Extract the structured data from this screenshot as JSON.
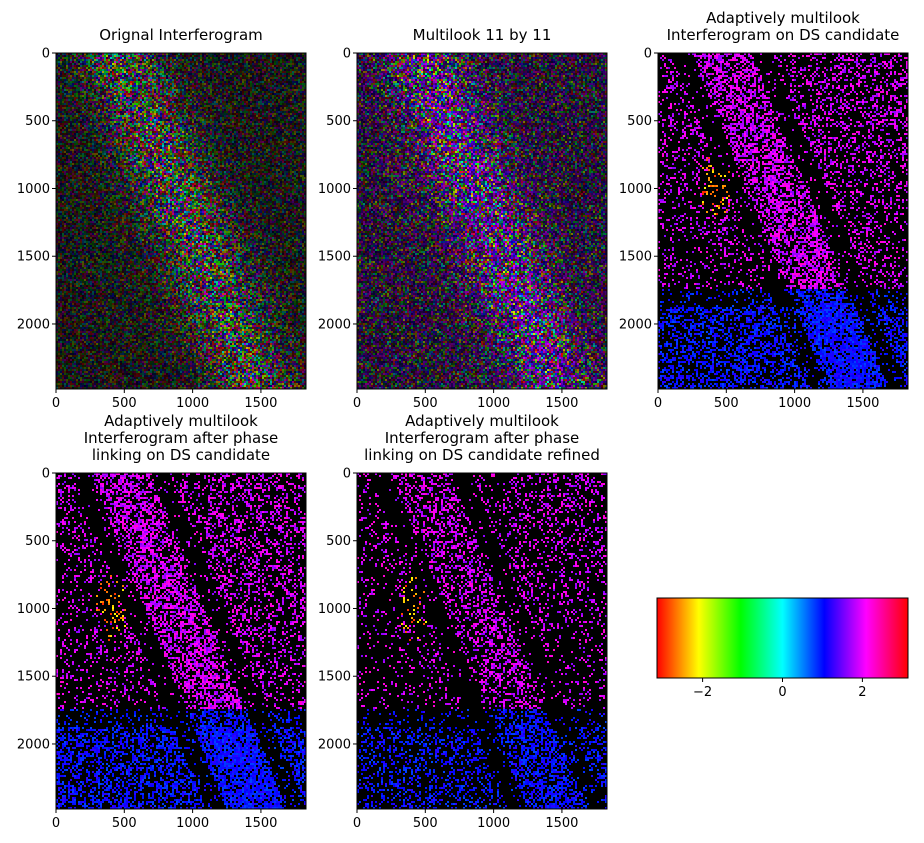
{
  "figure": {
    "panels": [
      {
        "title_lines": [
          "Orignal Interferogram"
        ],
        "kind": "noisy"
      },
      {
        "title_lines": [
          "Multilook 11 by 11"
        ],
        "kind": "smooth"
      },
      {
        "title_lines": [
          "Adaptively multilook",
          "Interferogram on DS candidate"
        ],
        "kind": "masked"
      },
      {
        "title_lines": [
          "Adaptively multilook",
          "Interferogram after phase",
          "linking on DS candidate"
        ],
        "kind": "masked"
      },
      {
        "title_lines": [
          "Adaptively multilook",
          "Interferogram after phase",
          "linking on DS candidate refined"
        ],
        "kind": "refined"
      }
    ]
  },
  "chart_data": {
    "type": "heatmap",
    "image_extent": {
      "x": [
        0,
        1830
      ],
      "y": [
        2480,
        0
      ]
    },
    "x_ticks": [
      0,
      500,
      1000,
      1500
    ],
    "y_ticks": [
      0,
      500,
      1000,
      1500,
      2000
    ],
    "colormap": "hsv",
    "colorbar": {
      "range": [
        -3.1416,
        3.1416
      ],
      "ticks": [
        -2,
        0,
        2
      ],
      "tick_labels": [
        "−2",
        "0",
        "2"
      ],
      "colors": [
        "#ff0000",
        "#ffff00",
        "#00ff00",
        "#00ffff",
        "#0000ff",
        "#ff00ff",
        "#ff0000"
      ]
    }
  }
}
